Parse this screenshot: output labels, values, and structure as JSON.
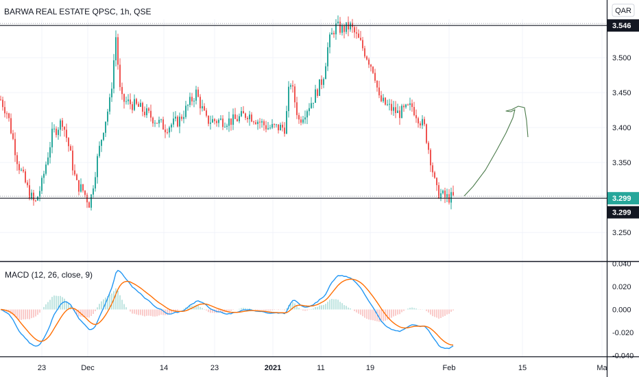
{
  "header": {
    "title": "BARWA REAL ESTATE QPSC, 1h, QSE",
    "currency": "QAR"
  },
  "chart_data": {
    "type": "candlestick",
    "title": "BARWA REAL ESTATE QPSC, 1h, QSE",
    "currency": "QAR",
    "price_axis": {
      "ticks": [
        "3.500",
        "3.450",
        "3.400",
        "3.350",
        "3.250"
      ],
      "range": [
        3.21,
        3.555
      ]
    },
    "time_axis": {
      "labels": [
        "23",
        "Dec",
        "14",
        "23",
        "2021",
        "11",
        "19",
        "Feb",
        "15",
        "Ma"
      ]
    },
    "horizontal_lines": [
      {
        "label": "3.546",
        "value": 3.546,
        "style": "solid",
        "color": "#131722"
      },
      {
        "label": "3.299",
        "value": 3.299,
        "style": "solid",
        "color": "#131722"
      }
    ],
    "price_labels": [
      {
        "label": "3.546",
        "value": 3.546,
        "color": "#131722"
      },
      {
        "label": "3.299",
        "value": 3.299,
        "color": "#26a69a"
      },
      {
        "label": "3.299",
        "value": 3.2985,
        "color": "#131722"
      }
    ],
    "indicator": {
      "name": "MACD (12, 26, close, 9)",
      "ticks": [
        "0.040",
        "0.020",
        "0.000",
        "-0.020",
        "-0.040"
      ],
      "range": [
        -0.041,
        0.041
      ],
      "macd_color": "#2196f3",
      "signal_color": "#ff6d00"
    },
    "colors": {
      "up": "#26a69a",
      "down": "#ef5350",
      "drawing": "#4a7a4a"
    }
  }
}
